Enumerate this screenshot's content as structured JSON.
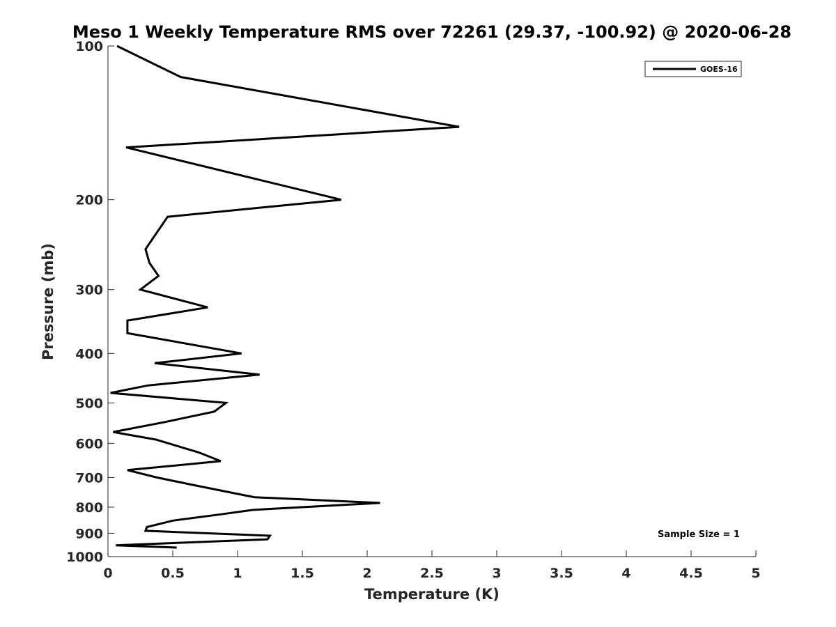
{
  "chart_data": {
    "type": "line",
    "title": "Meso 1 Weekly Temperature RMS over 72261 (29.37, -100.92) @ 2020-06-28",
    "xlabel": "Temperature (K)",
    "ylabel": "Pressure (mb)",
    "xlim": [
      0,
      5
    ],
    "ylim": [
      100,
      1000
    ],
    "y_scale": "log",
    "y_reversed": true,
    "grid": false,
    "x_ticks": [
      0,
      0.5,
      1,
      1.5,
      2,
      2.5,
      3,
      3.5,
      4,
      4.5,
      5
    ],
    "x_tick_labels": [
      "0",
      "0.5",
      "1",
      "1.5",
      "2",
      "2.5",
      "3",
      "3.5",
      "4",
      "4.5",
      "5"
    ],
    "y_ticks": [
      100,
      200,
      300,
      400,
      500,
      600,
      700,
      800,
      900,
      1000
    ],
    "y_tick_labels": [
      "100",
      "200",
      "300",
      "400",
      "500",
      "600",
      "700",
      "800",
      "900",
      "1000"
    ],
    "legend_position": "top-right",
    "annotation": "Sample Size = 1",
    "series": [
      {
        "name": "GOES-16",
        "color": "#000000",
        "points": [
          [
            0.07,
            100
          ],
          [
            0.56,
            115
          ],
          [
            2.71,
            144
          ],
          [
            0.14,
            158
          ],
          [
            1.8,
            200
          ],
          [
            0.46,
            216
          ],
          [
            0.29,
            250
          ],
          [
            0.32,
            266
          ],
          [
            0.39,
            282
          ],
          [
            0.25,
            300
          ],
          [
            0.77,
            325
          ],
          [
            0.15,
            345
          ],
          [
            0.15,
            365
          ],
          [
            1.03,
            400
          ],
          [
            0.36,
            418
          ],
          [
            1.17,
            440
          ],
          [
            0.31,
            462
          ],
          [
            0.02,
            478
          ],
          [
            0.91,
            500
          ],
          [
            0.82,
            520
          ],
          [
            0.44,
            545
          ],
          [
            0.04,
            570
          ],
          [
            0.37,
            590
          ],
          [
            0.7,
            625
          ],
          [
            0.87,
            650
          ],
          [
            0.15,
            677
          ],
          [
            0.38,
            700
          ],
          [
            0.67,
            725
          ],
          [
            1.13,
            765
          ],
          [
            2.1,
            785
          ],
          [
            1.12,
            810
          ],
          [
            0.89,
            825
          ],
          [
            0.5,
            850
          ],
          [
            0.3,
            875
          ],
          [
            0.29,
            890
          ],
          [
            1.25,
            910
          ],
          [
            1.23,
            925
          ],
          [
            0.06,
            950
          ],
          [
            0.53,
            960
          ]
        ]
      }
    ]
  }
}
